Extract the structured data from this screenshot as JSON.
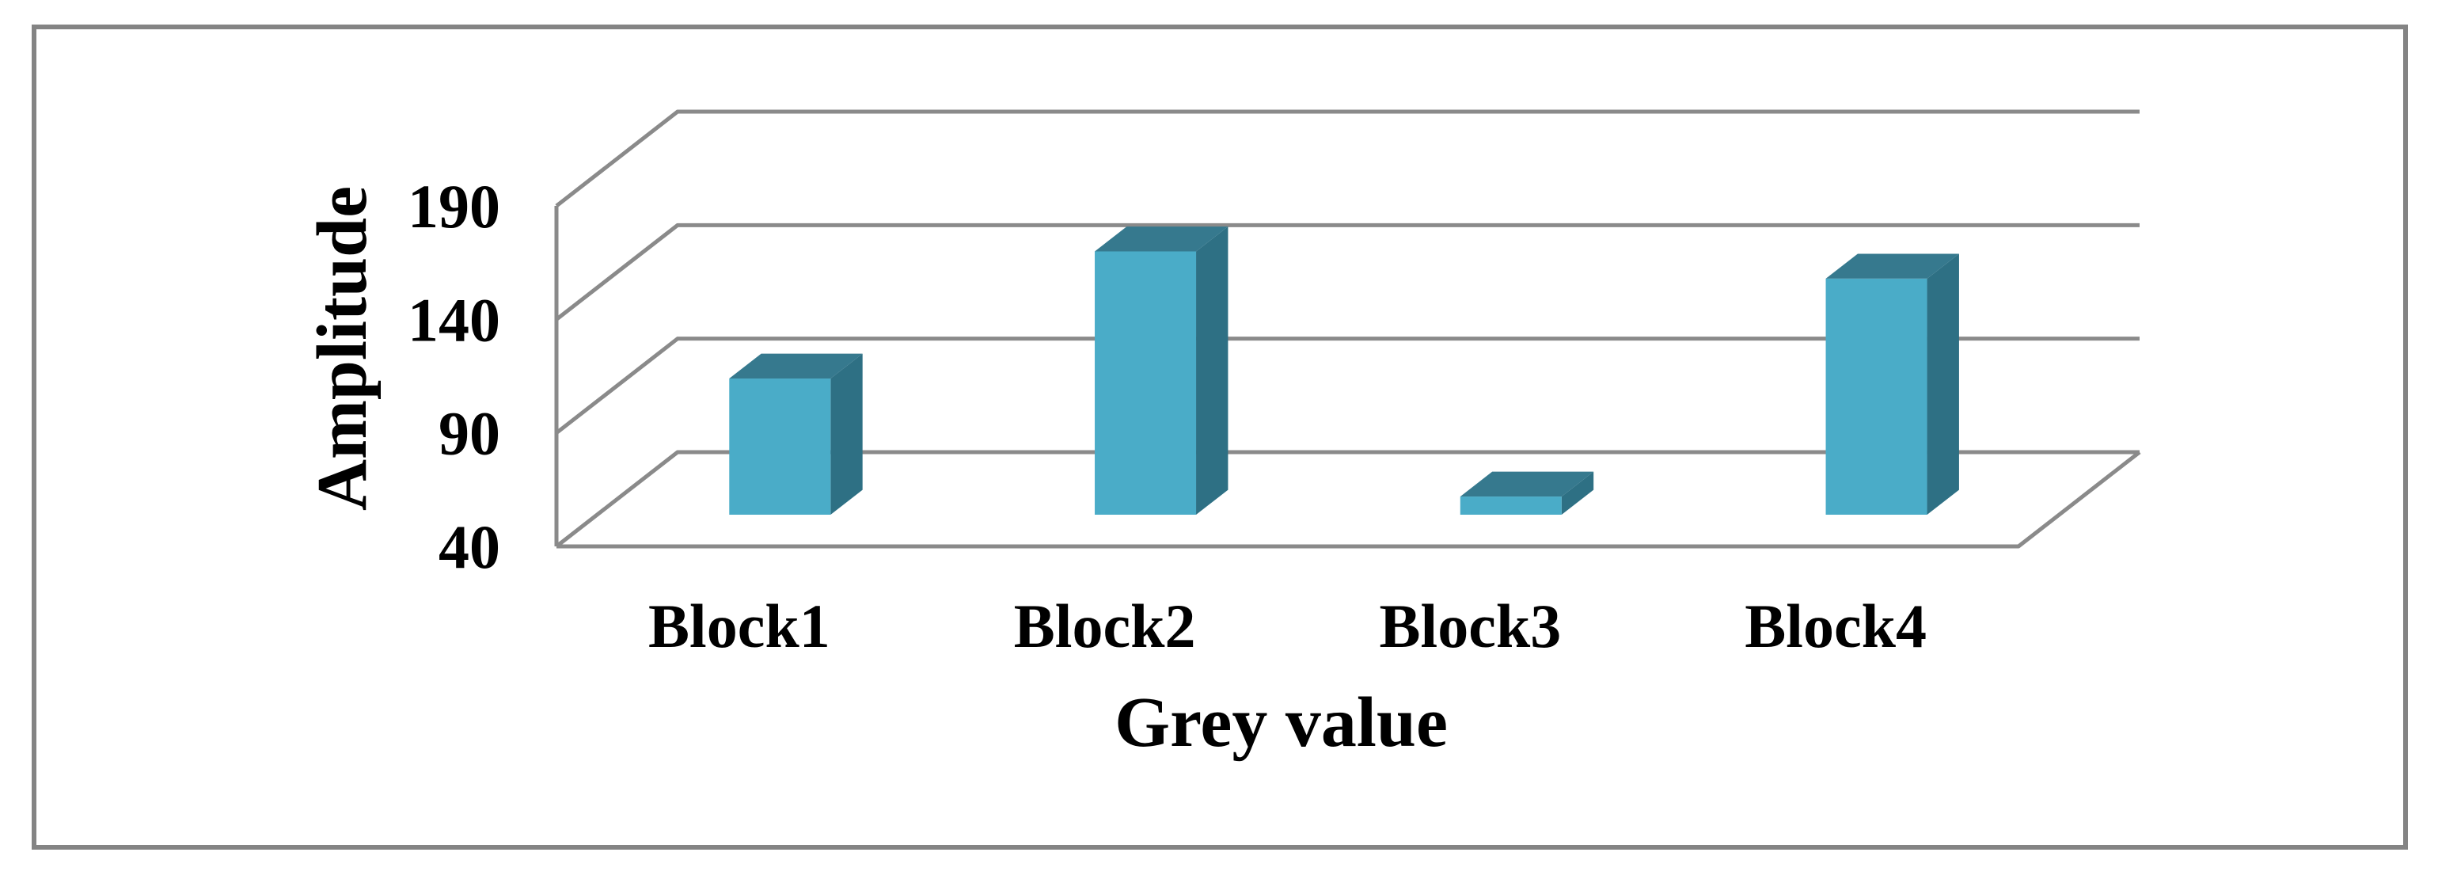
{
  "window": {
    "background": "#FFFFFF",
    "border_color": "#848484"
  },
  "chart_data": {
    "type": "bar",
    "projection": "3d-oblique",
    "title": "",
    "xlabel": "Grey value",
    "ylabel": "Amplitude",
    "categories": [
      "Block1",
      "Block2",
      "Block3",
      "Block4"
    ],
    "values": [
      100,
      156,
      48,
      144
    ],
    "ylim": [
      40,
      190
    ],
    "yticks": [
      40,
      90,
      140,
      190
    ],
    "ytick_labels": [
      "40",
      "90",
      "140",
      "190"
    ],
    "grid": true,
    "legend": "none",
    "colors": {
      "bar_front": "#4AACC8",
      "bar_top": "#36798E",
      "bar_side": "#2E7084",
      "gridline": "#8A8A8A",
      "axis_line": "#8A8A8A",
      "text": "#000000",
      "plot_background": "#FFFFFF"
    }
  }
}
